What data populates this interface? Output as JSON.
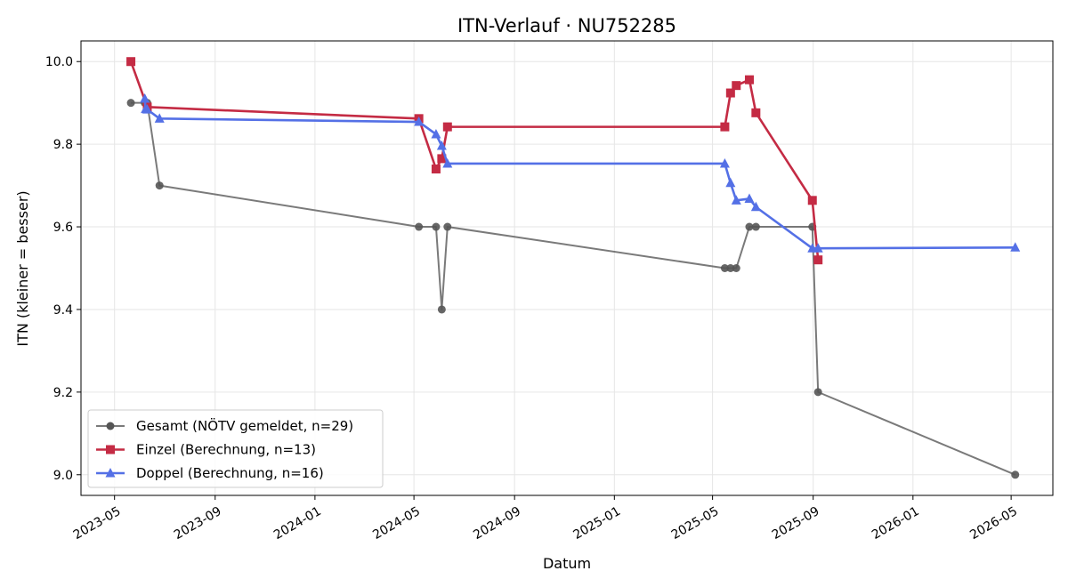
{
  "chart_data": {
    "type": "line",
    "title": "ITN-Verlauf · NU752285",
    "xlabel": "Datum",
    "ylabel": "ITN  (kleiner = besser)",
    "xlim": [
      "2023-03-21",
      "2026-06-21"
    ],
    "ylim": [
      8.95,
      10.05
    ],
    "x_ticks": [
      "2023-05",
      "2023-09",
      "2024-01",
      "2024-05",
      "2024-09",
      "2025-01",
      "2025-05",
      "2025-09",
      "2026-01",
      "2026-05"
    ],
    "y_ticks": [
      "9.0",
      "9.2",
      "9.4",
      "9.6",
      "9.8",
      "10.0"
    ],
    "grid": true,
    "legend": "lower-left",
    "series": [
      {
        "name": "Gesamt (NÖTV gemeldet, n=29)",
        "color": "#555555",
        "marker": "circle",
        "points": [
          [
            "2023-05-21",
            9.9
          ],
          [
            "2023-06-07",
            9.9
          ],
          [
            "2023-06-10",
            9.9
          ],
          [
            "2023-06-25",
            9.7
          ],
          [
            "2024-05-07",
            9.6
          ],
          [
            "2024-05-28",
            9.6
          ],
          [
            "2024-06-04",
            9.4
          ],
          [
            "2024-06-11",
            9.6
          ],
          [
            "2025-05-16",
            9.5
          ],
          [
            "2025-05-23",
            9.5
          ],
          [
            "2025-05-30",
            9.5
          ],
          [
            "2025-06-15",
            9.6
          ],
          [
            "2025-06-23",
            9.6
          ],
          [
            "2025-08-31",
            9.6
          ],
          [
            "2025-09-07",
            9.2
          ],
          [
            "2026-05-06",
            9.0
          ]
        ]
      },
      {
        "name": "Einzel (Berechnung, n=13)",
        "color": "#c42b44",
        "marker": "square",
        "points": [
          [
            "2023-05-21",
            10.0
          ],
          [
            "2023-06-10",
            9.89
          ],
          [
            "2024-05-07",
            9.862
          ],
          [
            "2024-05-28",
            9.74
          ],
          [
            "2024-06-04",
            9.765
          ],
          [
            "2024-06-11",
            9.842
          ],
          [
            "2025-05-16",
            9.842
          ],
          [
            "2025-05-23",
            9.924
          ],
          [
            "2025-05-30",
            9.942
          ],
          [
            "2025-06-15",
            9.956
          ],
          [
            "2025-06-23",
            9.876
          ],
          [
            "2025-08-31",
            9.664
          ],
          [
            "2025-09-07",
            9.52
          ]
        ]
      },
      {
        "name": "Doppel (Berechnung, n=16)",
        "color": "#5470e6",
        "marker": "triangle",
        "points": [
          [
            "2023-06-07",
            9.91
          ],
          [
            "2023-06-08",
            9.885
          ],
          [
            "2023-06-10",
            9.884
          ],
          [
            "2023-06-25",
            9.862
          ],
          [
            "2024-05-07",
            9.854
          ],
          [
            "2024-05-28",
            9.824
          ],
          [
            "2024-06-04",
            9.796
          ],
          [
            "2024-06-11",
            9.753
          ],
          [
            "2025-05-16",
            9.753
          ],
          [
            "2025-05-23",
            9.706
          ],
          [
            "2025-05-30",
            9.664
          ],
          [
            "2025-06-15",
            9.668
          ],
          [
            "2025-06-23",
            9.648
          ],
          [
            "2025-08-31",
            9.548
          ],
          [
            "2025-09-07",
            9.548
          ],
          [
            "2026-05-06",
            9.55
          ]
        ]
      }
    ]
  }
}
